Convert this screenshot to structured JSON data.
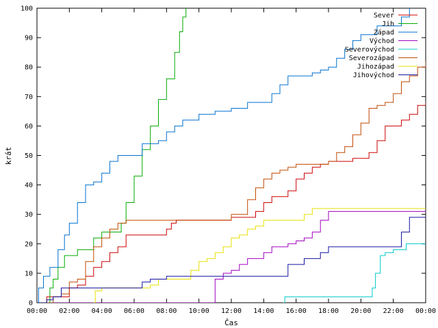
{
  "chart_data": {
    "type": "line",
    "title": "",
    "xlabel": "Čas",
    "ylabel": "krát",
    "xlim": [
      0,
      24
    ],
    "ylim": [
      0,
      100
    ],
    "grid": false,
    "legend_position": "top-right",
    "x_tick_labels": [
      "00:00",
      "02:00",
      "04:00",
      "06:00",
      "08:00",
      "10:00",
      "12:00",
      "14:00",
      "16:00",
      "18:00",
      "20:00",
      "22:00",
      "00:00"
    ],
    "y_tick_labels": [
      "0",
      "10",
      "20",
      "30",
      "40",
      "50",
      "60",
      "70",
      "80",
      "90",
      "100"
    ],
    "x_unit": "hours",
    "series": [
      {
        "name": "Sever",
        "color": "#cc0000",
        "points": [
          [
            0,
            0
          ],
          [
            0.4,
            0
          ],
          [
            0.6,
            2
          ],
          [
            1.5,
            2
          ],
          [
            2,
            5
          ],
          [
            2.5,
            6
          ],
          [
            3,
            9
          ],
          [
            3.5,
            12
          ],
          [
            4,
            14
          ],
          [
            4.5,
            17
          ],
          [
            5,
            19
          ],
          [
            5.5,
            23
          ],
          [
            6,
            23
          ],
          [
            7,
            23
          ],
          [
            7.5,
            23
          ],
          [
            8,
            25
          ],
          [
            8.3,
            27
          ],
          [
            8.6,
            28
          ],
          [
            10,
            28
          ],
          [
            11,
            28
          ],
          [
            12,
            29
          ],
          [
            13,
            29
          ],
          [
            13.5,
            31
          ],
          [
            14,
            34
          ],
          [
            14.5,
            36
          ],
          [
            15,
            36
          ],
          [
            15.5,
            38
          ],
          [
            16,
            42
          ],
          [
            16.5,
            44
          ],
          [
            17,
            46
          ],
          [
            17.5,
            47
          ],
          [
            18,
            48
          ],
          [
            19,
            48
          ],
          [
            19.5,
            49
          ],
          [
            20,
            49
          ],
          [
            20.5,
            51
          ],
          [
            21,
            55
          ],
          [
            21.5,
            60
          ],
          [
            22,
            60
          ],
          [
            22.5,
            62
          ],
          [
            23,
            64
          ],
          [
            23.5,
            67
          ],
          [
            24,
            68
          ]
        ]
      },
      {
        "name": "Jih",
        "color": "#00aa00",
        "points": [
          [
            0,
            0
          ],
          [
            0.5,
            0
          ],
          [
            0.8,
            5
          ],
          [
            1,
            8
          ],
          [
            1.3,
            12
          ],
          [
            1.7,
            16
          ],
          [
            2,
            16
          ],
          [
            2.5,
            18
          ],
          [
            3,
            18
          ],
          [
            3.5,
            22
          ],
          [
            4,
            24
          ],
          [
            4.5,
            24
          ],
          [
            5,
            24
          ],
          [
            5.2,
            27
          ],
          [
            5.5,
            34
          ],
          [
            6,
            43
          ],
          [
            6.5,
            52
          ],
          [
            7,
            60
          ],
          [
            7.5,
            69
          ],
          [
            8,
            76
          ],
          [
            8.5,
            85
          ],
          [
            8.8,
            92
          ],
          [
            9,
            97
          ],
          [
            9.2,
            100
          ]
        ]
      },
      {
        "name": "Západ",
        "color": "#0070d0",
        "points": [
          [
            0,
            0
          ],
          [
            0.1,
            5
          ],
          [
            0.4,
            9
          ],
          [
            0.8,
            12
          ],
          [
            1.3,
            18
          ],
          [
            1.7,
            23
          ],
          [
            2,
            27
          ],
          [
            2.5,
            34
          ],
          [
            3,
            40
          ],
          [
            3.5,
            41
          ],
          [
            4,
            44
          ],
          [
            4.5,
            48
          ],
          [
            5,
            50
          ],
          [
            5.5,
            50
          ],
          [
            6,
            50
          ],
          [
            6.5,
            54
          ],
          [
            7,
            54
          ],
          [
            7.5,
            55
          ],
          [
            8,
            58
          ],
          [
            8.5,
            60
          ],
          [
            9,
            62
          ],
          [
            9.5,
            62
          ],
          [
            10,
            64
          ],
          [
            11,
            65
          ],
          [
            12,
            66
          ],
          [
            13,
            68
          ],
          [
            14,
            68
          ],
          [
            14.5,
            71
          ],
          [
            15,
            74
          ],
          [
            15.5,
            77
          ],
          [
            16.5,
            77
          ],
          [
            17,
            78
          ],
          [
            17.5,
            79
          ],
          [
            18,
            80
          ],
          [
            18.5,
            83
          ],
          [
            19,
            86
          ],
          [
            19.5,
            89
          ],
          [
            20,
            91
          ],
          [
            21,
            94
          ],
          [
            22,
            94
          ],
          [
            22.5,
            97
          ],
          [
            23,
            100
          ]
        ]
      },
      {
        "name": "Východ",
        "color": "#a000c0",
        "points": [
          [
            0,
            0
          ],
          [
            10.8,
            0
          ],
          [
            11,
            8
          ],
          [
            11.5,
            10
          ],
          [
            12,
            11
          ],
          [
            12.5,
            13
          ],
          [
            13,
            15
          ],
          [
            13.5,
            15
          ],
          [
            14,
            17
          ],
          [
            14.5,
            19
          ],
          [
            15,
            19
          ],
          [
            15.5,
            20
          ],
          [
            16,
            21
          ],
          [
            16.5,
            22
          ],
          [
            17,
            24
          ],
          [
            17.5,
            28
          ],
          [
            18,
            31
          ],
          [
            19,
            31
          ],
          [
            20,
            31
          ],
          [
            22,
            31
          ],
          [
            24,
            31
          ]
        ]
      },
      {
        "name": "Severovýchod",
        "color": "#00c8c8",
        "points": [
          [
            15.2,
            0
          ],
          [
            15.3,
            2
          ],
          [
            16,
            2
          ],
          [
            18,
            2
          ],
          [
            19.5,
            2
          ],
          [
            20.5,
            2
          ],
          [
            20.7,
            5
          ],
          [
            20.9,
            10
          ],
          [
            21.2,
            16
          ],
          [
            21.5,
            17
          ],
          [
            22,
            18
          ],
          [
            22.5,
            18
          ],
          [
            22.8,
            20
          ],
          [
            24,
            20
          ]
        ]
      },
      {
        "name": "Severozápad",
        "color": "#c04800",
        "points": [
          [
            0,
            0
          ],
          [
            0.7,
            0
          ],
          [
            1,
            2
          ],
          [
            1.5,
            3
          ],
          [
            2,
            7
          ],
          [
            2.5,
            8
          ],
          [
            3,
            14
          ],
          [
            3.5,
            19
          ],
          [
            4,
            22
          ],
          [
            4.5,
            25
          ],
          [
            5,
            27
          ],
          [
            5.5,
            28
          ],
          [
            6,
            28
          ],
          [
            7,
            28
          ],
          [
            8,
            28
          ],
          [
            9,
            28
          ],
          [
            10,
            28
          ],
          [
            11,
            28
          ],
          [
            12,
            30
          ],
          [
            12.5,
            30
          ],
          [
            13,
            35
          ],
          [
            13.5,
            39
          ],
          [
            14,
            42
          ],
          [
            14.5,
            44
          ],
          [
            15,
            45
          ],
          [
            15.5,
            46
          ],
          [
            16,
            47
          ],
          [
            17,
            47
          ],
          [
            18,
            48
          ],
          [
            18.5,
            51
          ],
          [
            19,
            53
          ],
          [
            19.5,
            57
          ],
          [
            20,
            61
          ],
          [
            20.5,
            66
          ],
          [
            21,
            67
          ],
          [
            21.5,
            68
          ],
          [
            22,
            71
          ],
          [
            22.5,
            75
          ],
          [
            23,
            77
          ],
          [
            23.5,
            80
          ],
          [
            24,
            82
          ]
        ]
      },
      {
        "name": "Jihozápad",
        "color": "#e8e000",
        "points": [
          [
            3.5,
            0
          ],
          [
            3.6,
            4
          ],
          [
            4,
            5
          ],
          [
            5,
            5
          ],
          [
            6,
            5
          ],
          [
            7,
            6
          ],
          [
            7.5,
            8
          ],
          [
            8,
            8
          ],
          [
            9,
            8
          ],
          [
            9.5,
            11
          ],
          [
            10,
            14
          ],
          [
            10.5,
            15
          ],
          [
            11,
            17
          ],
          [
            11.5,
            19
          ],
          [
            12,
            22
          ],
          [
            12.5,
            23
          ],
          [
            13,
            25
          ],
          [
            13.5,
            26
          ],
          [
            14,
            28
          ],
          [
            15,
            28
          ],
          [
            16,
            28
          ],
          [
            16.5,
            30
          ],
          [
            17,
            32
          ],
          [
            18,
            32
          ],
          [
            20,
            32
          ],
          [
            22,
            32
          ],
          [
            24,
            32
          ]
        ]
      },
      {
        "name": "Jihovýchod",
        "color": "#1010a0",
        "points": [
          [
            0,
            0
          ],
          [
            0.5,
            0
          ],
          [
            0.6,
            1
          ],
          [
            1,
            2
          ],
          [
            1.5,
            5
          ],
          [
            2,
            5
          ],
          [
            3,
            5
          ],
          [
            5,
            5
          ],
          [
            6,
            5
          ],
          [
            6.5,
            7
          ],
          [
            7,
            8
          ],
          [
            7.5,
            8
          ],
          [
            8,
            9
          ],
          [
            9,
            9
          ],
          [
            10,
            9
          ],
          [
            11,
            9
          ],
          [
            12,
            9
          ],
          [
            13,
            9
          ],
          [
            14,
            9
          ],
          [
            15,
            9
          ],
          [
            15.5,
            13
          ],
          [
            16,
            13
          ],
          [
            16.5,
            15
          ],
          [
            17,
            15
          ],
          [
            17.5,
            17
          ],
          [
            18,
            19
          ],
          [
            19,
            19
          ],
          [
            20,
            19
          ],
          [
            22,
            19
          ],
          [
            22.5,
            24
          ],
          [
            23,
            29
          ],
          [
            24,
            29
          ]
        ]
      }
    ]
  }
}
